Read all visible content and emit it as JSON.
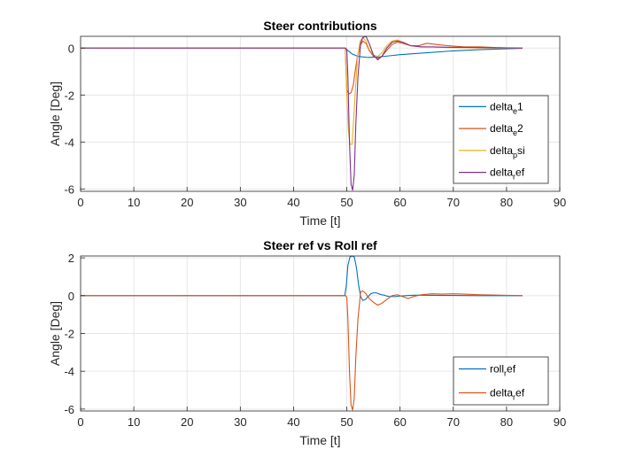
{
  "chart_data": [
    {
      "type": "line",
      "title": "Steer contributions",
      "xlabel": "Time [t]",
      "ylabel": "Angle [Deg]",
      "xlim": [
        0,
        90
      ],
      "ylim": [
        -6.1,
        0.5
      ],
      "xticks": [
        0,
        10,
        20,
        30,
        40,
        50,
        60,
        70,
        80,
        90
      ],
      "yticks": [
        -6,
        -4,
        -2,
        0
      ],
      "grid": true,
      "legend_position": "bottom-right",
      "legend": [
        {
          "main": "delta",
          "sub": "e",
          "rest": "1"
        },
        {
          "main": "delta",
          "sub": "e",
          "rest": "2"
        },
        {
          "main": "delta",
          "sub": "p",
          "rest": "si"
        },
        {
          "main": "delta",
          "sub": "r",
          "rest": "ef"
        }
      ],
      "series": [
        {
          "color": "#0072BD",
          "x": [
            0,
            49.7,
            50.2,
            51,
            52,
            54,
            56,
            58,
            60,
            65,
            70,
            75,
            80,
            83
          ],
          "y": [
            0,
            0,
            -0.1,
            -0.25,
            -0.35,
            -0.4,
            -0.38,
            -0.33,
            -0.28,
            -0.2,
            -0.12,
            -0.07,
            -0.03,
            -0.01
          ]
        },
        {
          "color": "#D95319",
          "x": [
            0,
            49.7,
            50,
            50.4,
            50.8,
            51.2,
            51.5,
            52,
            52.5,
            53,
            53.6,
            54.2,
            55,
            55.8,
            56.6,
            57.5,
            58.5,
            59.5,
            60.5,
            62,
            63.5,
            65,
            67,
            69,
            72,
            75,
            78,
            80,
            83
          ],
          "y": [
            0,
            0,
            -1.8,
            -1.95,
            -1.9,
            -1.6,
            -1.1,
            -0.35,
            0.1,
            0.3,
            0.2,
            -0.1,
            -0.35,
            -0.45,
            -0.35,
            -0.1,
            0.15,
            0.25,
            0.2,
            0.1,
            0.1,
            0.2,
            0.15,
            0.1,
            0.05,
            0.05,
            0.02,
            0.01,
            0
          ]
        },
        {
          "color": "#EDB120",
          "x": [
            0,
            49.7,
            50,
            50.3,
            50.6,
            51,
            51.5,
            52,
            52.5,
            53,
            53.6,
            54.2,
            55,
            55.8,
            56.6,
            57.5,
            58.5,
            59.5,
            60.5,
            62,
            64,
            66,
            68,
            70,
            73,
            76,
            80,
            83
          ],
          "y": [
            0,
            0,
            -2,
            -3.5,
            -4.1,
            -4.1,
            -2.2,
            -0.4,
            0.3,
            0.45,
            0.3,
            -0.05,
            -0.3,
            -0.35,
            -0.2,
            0.1,
            0.3,
            0.35,
            0.25,
            0.1,
            0.05,
            0.05,
            0.03,
            0.02,
            0.01,
            0,
            0,
            0
          ]
        },
        {
          "color": "#7E2F8E",
          "x": [
            0,
            49.8,
            50,
            50.2,
            50.5,
            50.8,
            51.1,
            51.4,
            51.7,
            52.1,
            52.6,
            53,
            53.6,
            54.2,
            55,
            55.8,
            56.6,
            57.5,
            58.5,
            59.5,
            60.5,
            62,
            64,
            66,
            70,
            75,
            80,
            83
          ],
          "y": [
            0,
            0,
            -0.1,
            -1.2,
            -4,
            -5.8,
            -6.05,
            -5.4,
            -3.2,
            -1.2,
            0.2,
            0.45,
            0.5,
            0.2,
            -0.3,
            -0.5,
            -0.35,
            0.0,
            0.25,
            0.3,
            0.25,
            0.1,
            0.05,
            0.05,
            0.03,
            0.02,
            0.01,
            0
          ]
        }
      ]
    },
    {
      "type": "line",
      "title": "Steer ref vs Roll ref",
      "xlabel": "Time [t]",
      "ylabel": "Angle [Deg]",
      "xlim": [
        0,
        90
      ],
      "ylim": [
        -6.1,
        2.1
      ],
      "xticks": [
        0,
        10,
        20,
        30,
        40,
        50,
        60,
        70,
        80,
        90
      ],
      "yticks": [
        -6,
        -4,
        -2,
        0,
        2
      ],
      "grid": true,
      "legend_position": "bottom-right",
      "legend": [
        {
          "main": "roll",
          "sub": "r",
          "rest": "ef"
        },
        {
          "main": "delta",
          "sub": "r",
          "rest": "ef"
        }
      ],
      "series": [
        {
          "color": "#0072BD",
          "x": [
            0,
            49.6,
            49.9,
            50.2,
            50.6,
            51,
            51.4,
            51.8,
            52.2,
            52.6,
            53,
            53.5,
            54,
            54.5,
            55,
            55.5,
            56,
            56.5,
            57,
            57.5,
            58,
            59,
            60,
            61,
            62,
            64,
            66,
            70,
            75,
            80,
            83
          ],
          "y": [
            0,
            0,
            0.5,
            1.6,
            2.05,
            2.1,
            2.05,
            1.5,
            0.6,
            -0.05,
            -0.25,
            -0.2,
            -0.05,
            0.1,
            0.15,
            0.15,
            0.1,
            0.05,
            0.03,
            -0.02,
            -0.05,
            -0.05,
            -0.02,
            0.0,
            0.02,
            0.03,
            0.02,
            0.01,
            0,
            0,
            0
          ]
        },
        {
          "color": "#D95319",
          "x": [
            0,
            49.8,
            50,
            50.2,
            50.5,
            50.8,
            51.1,
            51.4,
            51.7,
            52.1,
            52.6,
            53,
            53.6,
            54.2,
            55,
            55.8,
            56.6,
            57.5,
            58.5,
            59.5,
            60.5,
            61.5,
            62.5,
            64,
            66,
            68,
            70,
            72,
            75,
            80,
            83
          ],
          "y": [
            0,
            0,
            -0.1,
            -1.2,
            -4,
            -5.8,
            -6.05,
            -5.4,
            -3.2,
            -1.2,
            0.2,
            0.25,
            0.1,
            -0.15,
            -0.35,
            -0.5,
            -0.4,
            -0.2,
            0.0,
            0.05,
            -0.05,
            -0.15,
            -0.05,
            0.05,
            0.1,
            0.08,
            0.1,
            0.08,
            0.05,
            0.02,
            0
          ]
        }
      ]
    }
  ]
}
